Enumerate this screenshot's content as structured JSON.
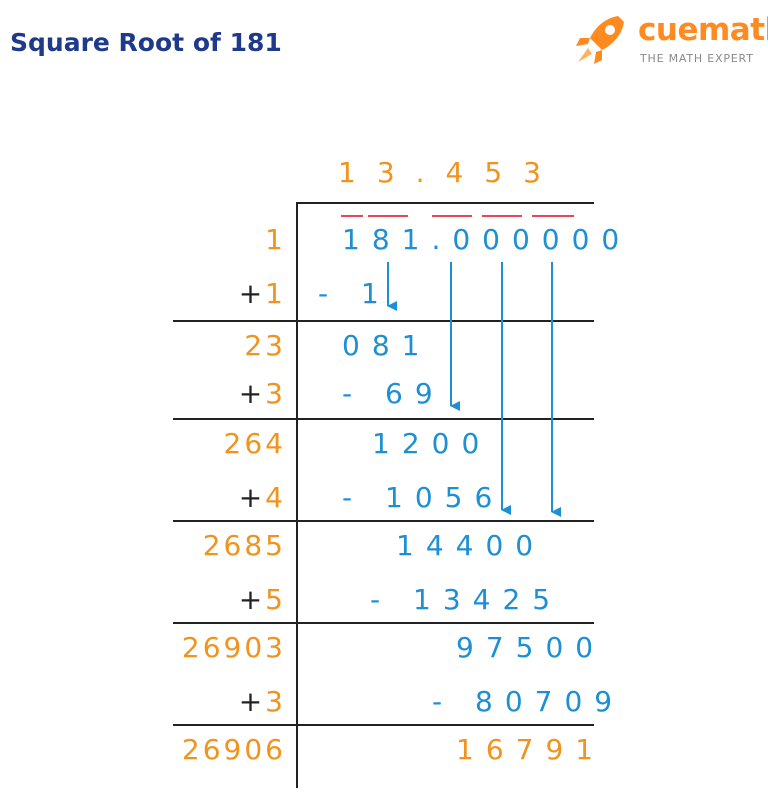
{
  "title": "Square Root of 181",
  "brand": {
    "name": "cuemath",
    "tagline": "THE MATH EXPERT"
  },
  "quotient": "13.453",
  "dividend": "181.000000",
  "divisors": [
    {
      "value": "1"
    },
    {
      "plus": "+",
      "digit": "1"
    },
    {
      "value": "23"
    },
    {
      "plus": "+",
      "digit": "3"
    },
    {
      "value": "264"
    },
    {
      "plus": "+",
      "digit": "4"
    },
    {
      "value": "2685"
    },
    {
      "plus": "+",
      "digit": "5"
    },
    {
      "value": "26903"
    },
    {
      "plus": "+",
      "digit": "3"
    },
    {
      "value": "26906"
    }
  ],
  "work": [
    "- 1",
    "081",
    "- 69",
    "1200",
    "- 1056",
    "14400",
    "- 13425",
    "97500",
    "- 80709",
    "16791"
  ],
  "colors": {
    "title": "#1f3a8a",
    "orange": "#f0941e",
    "blue": "#1d8fd4",
    "pair_bar": "#e8475a"
  }
}
